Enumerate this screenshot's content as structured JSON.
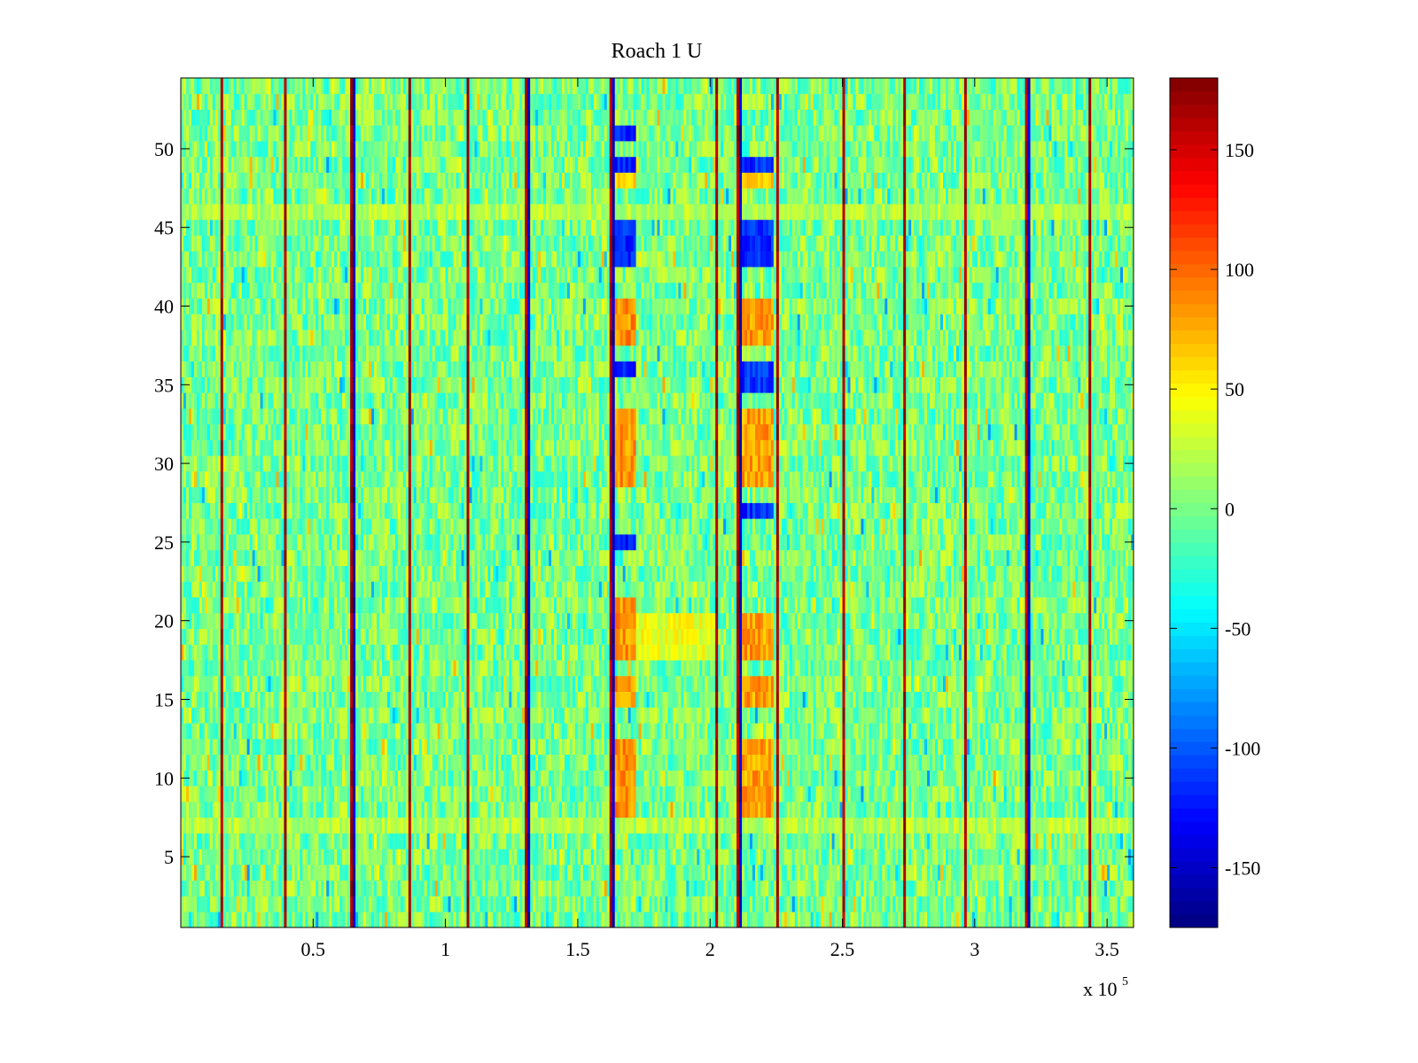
{
  "chart_data": {
    "type": "heatmap",
    "title": "Roach 1 U",
    "xlabel": "",
    "ylabel": "",
    "x_multiplier_base": "x 10",
    "x_multiplier_exponent": "5",
    "x_range": [
      0,
      3.6
    ],
    "y_range": [
      0.5,
      54.5
    ],
    "rows": 54,
    "x_ticks": [
      0.5,
      1,
      1.5,
      2,
      2.5,
      3,
      3.5
    ],
    "x_tick_labels": [
      "0.5",
      "1",
      "1.5",
      "2",
      "2.5",
      "3",
      "3.5"
    ],
    "y_ticks": [
      5,
      10,
      15,
      20,
      25,
      30,
      35,
      40,
      45,
      50
    ],
    "y_tick_labels": [
      "5",
      "10",
      "15",
      "20",
      "25",
      "30",
      "35",
      "40",
      "45",
      "50"
    ],
    "colorbar": {
      "colormap": "jet",
      "range": [
        -175,
        180
      ],
      "ticks": [
        -150,
        -100,
        -50,
        0,
        50,
        100,
        150
      ],
      "tick_labels": [
        "-150",
        "-100",
        "-50",
        "0",
        "50",
        "100",
        "150"
      ]
    },
    "background_level": 0,
    "background_noise_amplitude": 35,
    "spike_columns": [
      0.15,
      0.39,
      0.64,
      0.86,
      1.08,
      1.3,
      1.62,
      2.02,
      2.1,
      2.25,
      2.5,
      2.73,
      2.96,
      3.19,
      3.43
    ],
    "spike_value": 180,
    "dip_columns": [
      0.64,
      1.3,
      1.62,
      2.1,
      3.19
    ],
    "dip_value": -170,
    "features": [
      {
        "x_range": [
          1.62,
          1.72
        ],
        "rows": [
          8,
          9,
          10,
          11,
          12,
          15,
          16,
          18,
          19,
          20,
          21,
          29,
          30,
          31,
          32,
          33,
          38,
          39,
          40
        ],
        "value": 85
      },
      {
        "x_range": [
          1.62,
          1.72
        ],
        "rows": [
          25,
          36,
          43,
          44,
          45,
          49,
          51
        ],
        "value": -120
      },
      {
        "x_range": [
          1.62,
          1.72
        ],
        "rows": [
          48
        ],
        "value": 60
      },
      {
        "x_range": [
          2.1,
          2.24
        ],
        "rows": [
          8,
          9,
          10,
          11,
          12,
          15,
          16,
          18,
          19,
          20,
          29,
          30,
          31,
          32,
          33,
          38,
          39,
          40
        ],
        "value": 80
      },
      {
        "x_range": [
          2.1,
          2.24
        ],
        "rows": [
          27,
          35,
          36,
          43,
          44,
          45,
          49
        ],
        "value": -115
      },
      {
        "x_range": [
          2.1,
          2.24
        ],
        "rows": [
          48
        ],
        "value": 60
      },
      {
        "x_range": [
          1.72,
          2.02
        ],
        "rows": [
          18,
          19,
          20
        ],
        "value": 40
      },
      {
        "x_range": [
          0.0,
          3.6
        ],
        "rows": [
          7,
          46
        ],
        "value": 20
      }
    ]
  }
}
